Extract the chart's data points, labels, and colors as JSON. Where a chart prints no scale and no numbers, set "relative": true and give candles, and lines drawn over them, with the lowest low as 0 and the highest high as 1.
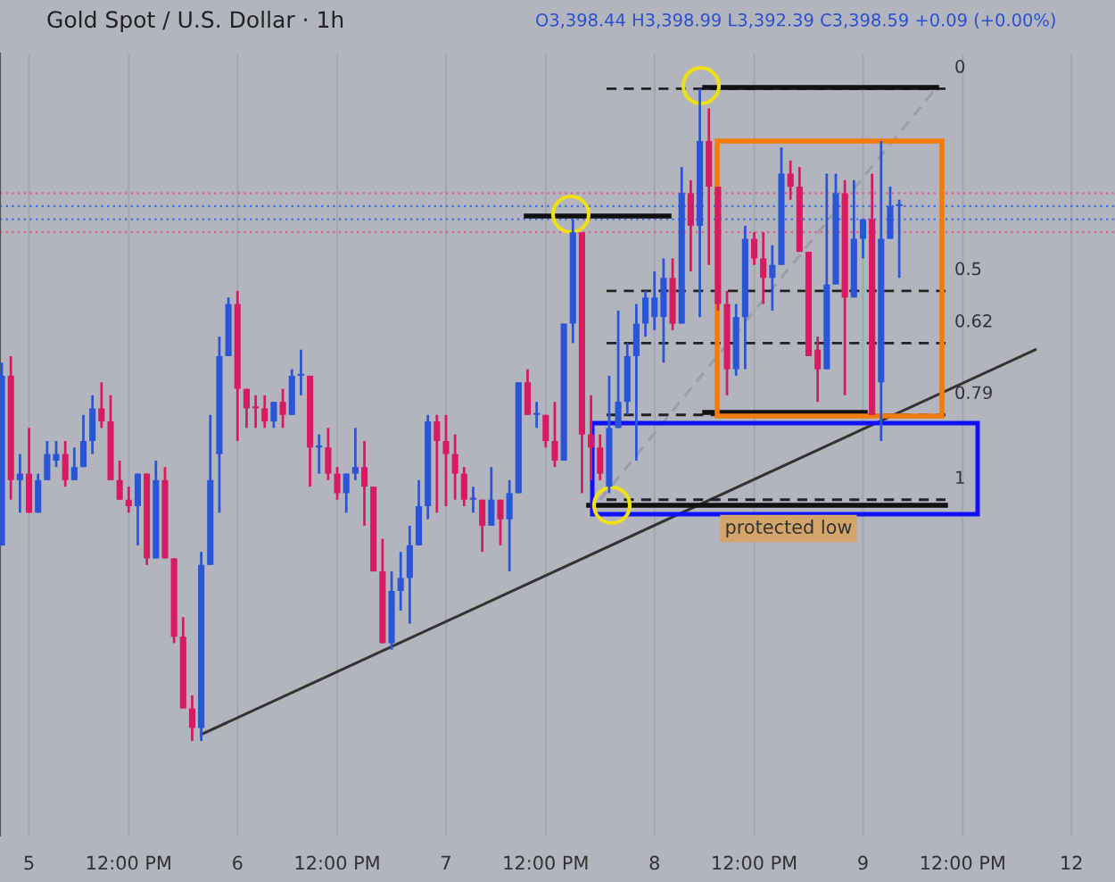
{
  "chart_data": {
    "type": "candlestick",
    "title": "Gold Spot / U.S. Dollar · 1h",
    "relative": true,
    "tick_labels": "x",
    "grid": "x",
    "legend": false,
    "annotations": [
      "O3,398.44 H3,398.99 L3,392.39 C3,398.59 +0.09 (+0.00%)",
      "protected low",
      "0",
      "0.5",
      "0.62",
      "0.79",
      "1"
    ],
    "categories": [
      null,
      null,
      null,
      "5",
      null,
      null,
      null,
      null,
      null,
      null,
      null,
      null,
      null,
      null,
      "12:00 PM",
      null,
      null,
      null,
      null,
      null,
      null,
      null,
      null,
      null,
      null,
      null,
      "6",
      null,
      null,
      null,
      null,
      null,
      null,
      null,
      null,
      null,
      null,
      "12:00 PM",
      null,
      null,
      null,
      null,
      null,
      null,
      null,
      null,
      null,
      null,
      null,
      "7",
      null,
      null,
      null,
      null,
      null,
      null,
      null,
      null,
      null,
      null,
      "12:00 PM",
      null,
      null,
      null,
      null,
      null,
      null,
      null,
      null,
      null,
      null,
      null,
      "8",
      null,
      null,
      null,
      null,
      null,
      null,
      null,
      null,
      null,
      null,
      "12:00 PM",
      null,
      null,
      null,
      null,
      null,
      null,
      null,
      null,
      null,
      null,
      null,
      "9",
      null,
      null,
      null,
      null,
      null,
      null,
      null,
      null,
      null,
      null,
      "12:00 PM",
      null,
      null,
      null,
      null,
      null,
      null,
      null,
      null,
      null,
      null,
      null,
      "12",
      null,
      null,
      null,
      null
    ],
    "ohlc": [
      [
        0.3,
        0.58,
        0.3,
        0.56
      ],
      [
        0.56,
        0.59,
        0.37,
        0.4
      ],
      [
        0.4,
        0.44,
        0.35,
        0.41
      ],
      [
        0.41,
        0.48,
        0.35,
        0.35
      ],
      [
        0.35,
        0.41,
        0.35,
        0.4
      ],
      [
        0.4,
        0.46,
        0.4,
        0.44
      ],
      [
        0.43,
        0.46,
        0.42,
        0.44
      ],
      [
        0.44,
        0.46,
        0.39,
        0.4
      ],
      [
        0.4,
        0.45,
        0.4,
        0.42
      ],
      [
        0.42,
        0.5,
        0.42,
        0.46
      ],
      [
        0.46,
        0.53,
        0.44,
        0.51
      ],
      [
        0.51,
        0.55,
        0.48,
        0.49
      ],
      [
        0.49,
        0.53,
        0.4,
        0.4
      ],
      [
        0.4,
        0.43,
        0.37,
        0.37
      ],
      [
        0.37,
        0.39,
        0.35,
        0.36
      ],
      [
        0.36,
        0.41,
        0.3,
        0.41
      ],
      [
        0.41,
        0.41,
        0.27,
        0.28
      ],
      [
        0.28,
        0.43,
        0.28,
        0.4
      ],
      [
        0.4,
        0.42,
        0.28,
        0.28
      ],
      [
        0.28,
        0.28,
        0.15,
        0.16
      ],
      [
        0.16,
        0.19,
        0.05,
        0.05
      ],
      [
        0.05,
        0.07,
        0,
        0.02
      ],
      [
        0.02,
        0.29,
        0,
        0.27
      ],
      [
        0.27,
        0.5,
        0.27,
        0.4
      ],
      [
        0.44,
        0.62,
        0.35,
        0.59
      ],
      [
        0.59,
        0.68,
        0.59,
        0.67
      ],
      [
        0.67,
        0.69,
        0.46,
        0.54
      ],
      [
        0.54,
        0.54,
        0.48,
        0.51
      ],
      [
        0.51,
        0.53,
        0.48,
        0.51
      ],
      [
        0.51,
        0.53,
        0.48,
        0.49
      ],
      [
        0.49,
        0.52,
        0.48,
        0.52
      ],
      [
        0.52,
        0.54,
        0.48,
        0.5
      ],
      [
        0.5,
        0.57,
        0.5,
        0.56
      ],
      [
        0.56,
        0.6,
        0.53,
        0.56
      ],
      [
        0.56,
        0.56,
        0.39,
        0.45
      ],
      [
        0.45,
        0.47,
        0.41,
        0.45
      ],
      [
        0.45,
        0.48,
        0.4,
        0.41
      ],
      [
        0.41,
        0.42,
        0.37,
        0.38
      ],
      [
        0.38,
        0.41,
        0.35,
        0.41
      ],
      [
        0.41,
        0.48,
        0.4,
        0.42
      ],
      [
        0.42,
        0.46,
        0.33,
        0.39
      ],
      [
        0.39,
        0.39,
        0.26,
        0.26
      ],
      [
        0.26,
        0.31,
        0.15,
        0.15
      ],
      [
        0.15,
        0.26,
        0.14,
        0.23
      ],
      [
        0.23,
        0.29,
        0.2,
        0.25
      ],
      [
        0.25,
        0.33,
        0.18,
        0.3
      ],
      [
        0.3,
        0.4,
        0.3,
        0.36
      ],
      [
        0.36,
        0.5,
        0.34,
        0.49
      ],
      [
        0.49,
        0.5,
        0.35,
        0.46
      ],
      [
        0.46,
        0.5,
        0.36,
        0.44
      ],
      [
        0.44,
        0.47,
        0.37,
        0.41
      ],
      [
        0.41,
        0.42,
        0.36,
        0.37
      ],
      [
        0.37,
        0.39,
        0.35,
        0.37
      ],
      [
        0.37,
        0.37,
        0.29,
        0.33
      ],
      [
        0.33,
        0.42,
        0.33,
        0.37
      ],
      [
        0.37,
        0.37,
        0.3,
        0.34
      ],
      [
        0.34,
        0.4,
        0.26,
        0.38
      ],
      [
        0.38,
        0.55,
        0.38,
        0.55
      ],
      [
        0.55,
        0.57,
        0.5,
        0.5
      ],
      [
        0.5,
        0.52,
        0.48,
        0.5
      ],
      [
        0.5,
        0.5,
        0.45,
        0.46
      ],
      [
        0.46,
        0.52,
        0.42,
        0.43
      ],
      [
        0.43,
        0.64,
        0.43,
        0.64
      ],
      [
        0.64,
        0.8,
        0.61,
        0.78
      ],
      [
        0.78,
        0.78,
        0.38,
        0.47
      ],
      [
        0.47,
        0.53,
        0.4,
        0.45
      ],
      [
        0.45,
        0.47,
        0.4,
        0.41
      ],
      [
        0.39,
        0.56,
        0.38,
        0.48
      ],
      [
        0.48,
        0.66,
        0.48,
        0.52
      ],
      [
        0.52,
        0.61,
        0.5,
        0.59
      ],
      [
        0.59,
        0.67,
        0.43,
        0.64
      ],
      [
        0.64,
        0.69,
        0.62,
        0.68
      ],
      [
        0.65,
        0.72,
        0.63,
        0.68
      ],
      [
        0.65,
        0.74,
        0.58,
        0.71
      ],
      [
        0.71,
        0.74,
        0.63,
        0.64
      ],
      [
        0.64,
        0.88,
        0.64,
        0.84
      ],
      [
        0.84,
        0.86,
        0.72,
        0.79
      ],
      [
        0.79,
        1.0,
        0.65,
        0.92
      ],
      [
        0.92,
        0.97,
        0.73,
        0.85
      ],
      [
        0.85,
        0.85,
        0.66,
        0.67
      ],
      [
        0.67,
        0.69,
        0.53,
        0.57
      ],
      [
        0.57,
        0.67,
        0.56,
        0.65
      ],
      [
        0.65,
        0.79,
        0.57,
        0.77
      ],
      [
        0.77,
        0.78,
        0.73,
        0.74
      ],
      [
        0.74,
        0.78,
        0.67,
        0.71
      ],
      [
        0.71,
        0.76,
        0.66,
        0.73
      ],
      [
        0.73,
        0.91,
        0.73,
        0.87
      ],
      [
        0.87,
        0.89,
        0.83,
        0.85
      ],
      [
        0.85,
        0.88,
        0.75,
        0.75
      ],
      [
        0.75,
        0.75,
        0.59,
        0.59
      ],
      [
        0.6,
        0.62,
        0.52,
        0.57
      ],
      [
        0.57,
        0.87,
        0.57,
        0.7
      ],
      [
        0.7,
        0.87,
        0.7,
        0.84
      ],
      [
        0.84,
        0.86,
        0.53,
        0.68
      ],
      [
        0.68,
        0.86,
        0.68,
        0.77
      ],
      [
        0.77,
        0.8,
        0.74,
        0.8
      ],
      [
        0.8,
        0.87,
        0.5,
        0.5
      ],
      [
        0.55,
        0.92,
        0.46,
        0.77
      ],
      [
        0.77,
        0.85,
        0.77,
        0.82
      ],
      [
        0.82,
        0.83,
        0.71,
        0.82
      ],
      null,
      null,
      null,
      null,
      null,
      null,
      null,
      null,
      null,
      null,
      null,
      null,
      null,
      null,
      null,
      null,
      null,
      null,
      null,
      null,
      null,
      null,
      null
    ],
    "colors": [
      "#2a55d8",
      "#d81b60",
      "#2a55d8",
      "#d81b60",
      "#2a55d8",
      "#2a55d8",
      "#2a55d8",
      "#d81b60",
      "#2a55d8",
      "#2a55d8",
      "#2a55d8",
      "#d81b60",
      "#d81b60",
      "#d81b60",
      "#d81b60",
      "#2a55d8",
      "#d81b60",
      "#2a55d8",
      "#d81b60",
      "#d81b60",
      "#d81b60",
      "#d81b60",
      "#2a55d8",
      "#2a55d8",
      "#2a55d8",
      "#2a55d8",
      "#d81b60",
      "#d81b60",
      "#d81b60",
      "#d81b60",
      "#2a55d8",
      "#d81b60",
      "#2a55d8",
      "#2a55d8",
      "#d81b60",
      "#2a55d8",
      "#d81b60",
      "#d81b60",
      "#2a55d8",
      "#2a55d8",
      "#d81b60",
      "#d81b60",
      "#d81b60",
      "#2a55d8",
      "#2a55d8",
      "#2a55d8",
      "#2a55d8",
      "#2a55d8",
      "#d81b60",
      "#d81b60",
      "#d81b60",
      "#d81b60",
      "#2a55d8",
      "#d81b60",
      "#2a55d8",
      "#d81b60",
      "#2a55d8",
      "#2a55d8",
      "#d81b60",
      "#2a55d8",
      "#d81b60",
      "#d81b60",
      "#2a55d8",
      "#2a55d8",
      "#d81b60",
      "#d81b60",
      "#d81b60",
      "#2a55d8",
      "#2a55d8",
      "#2a55d8",
      "#2a55d8",
      "#2a55d8",
      "#2a55d8",
      "#2a55d8",
      "#d81b60",
      "#2a55d8",
      "#d81b60",
      "#2a55d8",
      "#d81b60",
      "#d81b60",
      "#d81b60",
      "#2a55d8",
      "#2a55d8",
      "#d81b60",
      "#d81b60",
      "#2a55d8",
      "#2a55d8",
      "#d81b60",
      "#d81b60",
      "#d81b60",
      "#d81b60",
      "#2a55d8",
      "#2a55d8",
      "#d81b60",
      "#2a55d8",
      "#2a55d8",
      "#d81b60",
      "#2a55d8",
      "#2a55d8",
      "#2a55d8",
      null,
      null,
      null,
      null,
      null,
      null,
      null,
      null,
      null,
      null,
      null,
      null,
      null,
      null,
      null,
      null,
      null,
      null,
      null,
      null,
      null,
      null,
      null
    ],
    "series": [
      {
        "type": "line",
        "color": "#333333",
        "values": [
          null,
          null,
          null,
          null,
          null,
          null,
          null,
          null,
          null,
          null,
          null,
          null,
          null,
          null,
          null,
          null,
          null,
          null,
          null,
          null,
          null,
          null,
          0.01,
          null,
          null,
          null,
          null,
          null,
          null,
          null,
          null,
          null,
          null,
          null,
          null,
          null,
          null,
          null,
          null,
          null,
          null,
          null,
          null,
          null,
          null,
          null,
          null,
          null,
          null,
          null,
          null,
          null,
          null,
          null,
          null,
          null,
          null,
          null,
          null,
          null,
          null,
          null,
          null,
          null,
          null,
          null,
          null,
          null,
          null,
          null,
          null,
          null,
          null,
          null,
          null,
          null,
          null,
          null,
          null,
          null,
          null,
          null,
          null,
          null,
          null,
          null,
          null,
          null,
          null,
          null,
          null,
          null,
          null,
          null,
          null,
          null,
          null,
          null,
          null,
          null,
          null,
          null,
          null,
          null,
          null,
          null,
          null,
          null,
          null,
          null,
          null,
          null,
          null,
          null,
          0.6,
          null,
          null,
          null,
          null,
          null,
          null,
          null,
          null
        ]
      },
      {
        "type": "line",
        "color": "#9a9ea8",
        "line_style": "dashed",
        "values": [
          null,
          null,
          null,
          null,
          null,
          null,
          null,
          null,
          null,
          null,
          null,
          null,
          null,
          null,
          null,
          null,
          null,
          null,
          null,
          null,
          null,
          null,
          null,
          null,
          null,
          null,
          null,
          null,
          null,
          null,
          null,
          null,
          null,
          null,
          null,
          null,
          null,
          null,
          null,
          null,
          null,
          null,
          null,
          null,
          null,
          null,
          null,
          null,
          null,
          null,
          null,
          null,
          null,
          null,
          null,
          null,
          null,
          null,
          null,
          null,
          null,
          null,
          null,
          null,
          null,
          null,
          0.37,
          null,
          null,
          null,
          null,
          null,
          null,
          null,
          null,
          null,
          null,
          null,
          null,
          null,
          null,
          null,
          null,
          null,
          null,
          null,
          null,
          null,
          null,
          null,
          null,
          null,
          null,
          null,
          null,
          null,
          null,
          null,
          null,
          null,
          null,
          null,
          null,
          1.0,
          null,
          null,
          null,
          null,
          null,
          null,
          null,
          null,
          null,
          null,
          null,
          null,
          null,
          null,
          null,
          null,
          null,
          null,
          null
        ]
      }
    ],
    "ref_lines": [
      {
        "axis": "y",
        "value": 1.0,
        "color": "#222222",
        "line_style": "dashed"
      },
      {
        "axis": "y",
        "value": 0.69,
        "color": "#222222",
        "line_style": "dashed"
      },
      {
        "axis": "y",
        "value": 0.61,
        "color": "#222222",
        "line_style": "dashed"
      },
      {
        "axis": "y",
        "value": 0.5,
        "color": "#222222",
        "line_style": "dashed"
      },
      {
        "axis": "y",
        "value": 0.37,
        "color": "#222222",
        "line_style": "dashed"
      },
      {
        "axis": "y",
        "value": 0.84,
        "color": "#e0607e",
        "line_style": "dotted"
      },
      {
        "axis": "y",
        "value": 0.82,
        "color": "#3f6fe0",
        "line_style": "dotted"
      },
      {
        "axis": "y",
        "value": 0.8,
        "color": "#3f6fe0",
        "line_style": "dotted"
      },
      {
        "axis": "y",
        "value": 0.78,
        "color": "#e0607e",
        "line_style": "dotted"
      }
    ]
  }
}
